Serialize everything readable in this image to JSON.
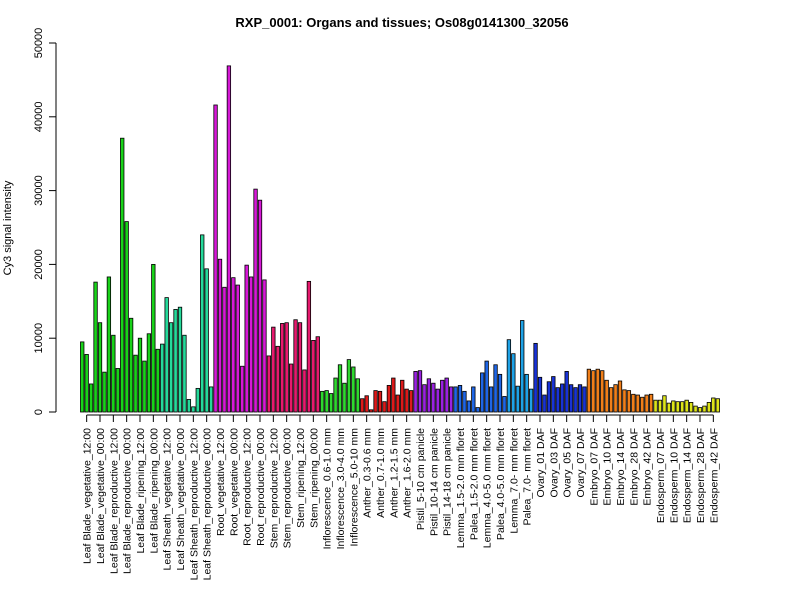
{
  "chart_data": {
    "type": "bar",
    "title": "RXP_0001: Organs and tissues; Os08g0141300_32056",
    "xlabel": "",
    "ylabel": "Cy3 signal intensity",
    "ylim": [
      0,
      50000
    ],
    "yticks": [
      0,
      10000,
      20000,
      30000,
      40000,
      50000
    ],
    "grid": false,
    "legend": "none",
    "groups": [
      {
        "label": "Leaf Blade_vegetative_12:00",
        "color": "#19d219",
        "values": [
          9500,
          7800,
          3800
        ]
      },
      {
        "label": "Leaf Blade_vegetative_00:00",
        "color": "#19d219",
        "values": [
          17600,
          12100,
          5400
        ]
      },
      {
        "label": "Leaf Blade_reproductive_12:00",
        "color": "#19d219",
        "values": [
          18300,
          10400,
          5900
        ]
      },
      {
        "label": "Leaf Blade_reproductive_00:00",
        "color": "#19d219",
        "values": [
          37100,
          25800,
          12700
        ]
      },
      {
        "label": "Leaf Blade_ripening_12:00",
        "color": "#19d219",
        "values": [
          7700,
          10000,
          6900
        ]
      },
      {
        "label": "Leaf Blade_ripening_00:00",
        "color": "#19d219",
        "values": [
          10600,
          20000,
          8500
        ]
      },
      {
        "label": "Leaf Sheath_vegetative_12:00",
        "color": "#26d99a",
        "values": [
          9200,
          15500,
          12100
        ]
      },
      {
        "label": "Leaf Sheath_vegetative_00:00",
        "color": "#26d99a",
        "values": [
          13900,
          14200,
          10400
        ]
      },
      {
        "label": "Leaf Sheath_reproductive_12:00",
        "color": "#26d99a",
        "values": [
          1700,
          700,
          3200
        ]
      },
      {
        "label": "Leaf Sheath_reproductive_00:00",
        "color": "#26d99a",
        "values": [
          24000,
          19400,
          3400
        ]
      },
      {
        "label": "Root_vegetative_12:00",
        "color": "#d619d6",
        "values": [
          41600,
          20700,
          16900
        ]
      },
      {
        "label": "Root_vegetative_00:00",
        "color": "#d619d6",
        "values": [
          46900,
          18200,
          17200
        ]
      },
      {
        "label": "Root_reproductive_12:00",
        "color": "#d619d6",
        "values": [
          6200,
          19900,
          18300
        ]
      },
      {
        "label": "Root_reproductive_00:00",
        "color": "#d619d6",
        "values": [
          30200,
          28700,
          17900
        ]
      },
      {
        "label": "Stem_reproductive_12:00",
        "color": "#e61a6e",
        "values": [
          7600,
          11500,
          8900
        ]
      },
      {
        "label": "Stem_reproductive_00:00",
        "color": "#e61a6e",
        "values": [
          12000,
          12100,
          6500
        ]
      },
      {
        "label": "Stem_ripening_12:00",
        "color": "#e61a6e",
        "values": [
          12500,
          12100,
          5700
        ]
      },
      {
        "label": "Stem_ripening_00:00",
        "color": "#e61a6e",
        "values": [
          17700,
          9700,
          10200
        ]
      },
      {
        "label": "Inflorescence_0.6-1.0 mm",
        "color": "#2fd82f",
        "values": [
          2800,
          2900,
          2500
        ]
      },
      {
        "label": "Inflorescence_3.0-4.0 mm",
        "color": "#2fd82f",
        "values": [
          4600,
          6400,
          3900
        ]
      },
      {
        "label": "Inflorescence_5.0-10 mm",
        "color": "#2fd82f",
        "values": [
          7100,
          6100,
          4500
        ]
      },
      {
        "label": "Anther_0.3-0.6 mm",
        "color": "#dd1a1a",
        "values": [
          1800,
          2200,
          300
        ]
      },
      {
        "label": "Anther_0.7-1.0 mm",
        "color": "#dd1a1a",
        "values": [
          2900,
          2800,
          1400
        ]
      },
      {
        "label": "Anther_1.2-1.5 mm",
        "color": "#dd1a1a",
        "values": [
          3600,
          4600,
          2300
        ]
      },
      {
        "label": "Anther_1.6-2.0 mm",
        "color": "#dd1a1a",
        "values": [
          4300,
          3100,
          2900
        ]
      },
      {
        "label": "Pistil_5-10 cm panicle",
        "color": "#9a22e0",
        "values": [
          5500,
          5600,
          3700
        ]
      },
      {
        "label": "Pistil_10-14 cm panicle",
        "color": "#9a22e0",
        "values": [
          4500,
          3900,
          3100
        ]
      },
      {
        "label": "Pistil_14-18 cm panicle",
        "color": "#9a22e0",
        "values": [
          4300,
          4600,
          3400
        ]
      },
      {
        "label": "Lemma_1.5-2.0 mm floret",
        "color": "#1f66e6",
        "values": [
          3400,
          3600,
          2800
        ]
      },
      {
        "label": "Palea_1.5-2.0 mm floret",
        "color": "#1f66e6",
        "values": [
          1500,
          3400,
          600
        ]
      },
      {
        "label": "Lemma_4.0-5.0 mm floret",
        "color": "#1f66e6",
        "values": [
          5300,
          6900,
          3400
        ]
      },
      {
        "label": "Palea_4.0-5.0 mm floret",
        "color": "#1f66e6",
        "values": [
          6400,
          5100,
          2100
        ]
      },
      {
        "label": "Lemma_7.0- mm floret",
        "color": "#1fa2e6",
        "values": [
          9800,
          7900,
          3500
        ]
      },
      {
        "label": "Palea_7.0- mm floret",
        "color": "#1fa2e6",
        "values": [
          12400,
          5100,
          3100
        ]
      },
      {
        "label": "Ovary_01 DAF",
        "color": "#1933d6",
        "values": [
          9300,
          4700,
          2300
        ]
      },
      {
        "label": "Ovary_03 DAF",
        "color": "#1933d6",
        "values": [
          4100,
          4800,
          3300
        ]
      },
      {
        "label": "Ovary_05 DAF",
        "color": "#1933d6",
        "values": [
          3800,
          5500,
          3700
        ]
      },
      {
        "label": "Ovary_07 DAF",
        "color": "#1933d6",
        "values": [
          3300,
          3700,
          3400
        ]
      },
      {
        "label": "Embryo_07 DAF",
        "color": "#f07f1a",
        "values": [
          5800,
          5600,
          5800
        ]
      },
      {
        "label": "Embryo_10 DAF",
        "color": "#f07f1a",
        "values": [
          5600,
          4300,
          3300
        ]
      },
      {
        "label": "Embryo_14 DAF",
        "color": "#f07f1a",
        "values": [
          3700,
          4200,
          3000
        ]
      },
      {
        "label": "Embryo_28 DAF",
        "color": "#f07f1a",
        "values": [
          2900,
          2400,
          2300
        ]
      },
      {
        "label": "Embryo_42 DAF",
        "color": "#f07f1a",
        "values": [
          2000,
          2300,
          2400
        ]
      },
      {
        "label": "Endosperm_07 DAF",
        "color": "#dde41a",
        "values": [
          1600,
          1600,
          2200
        ]
      },
      {
        "label": "Endosperm_10 DAF",
        "color": "#dde41a",
        "values": [
          1200,
          1500,
          1400
        ]
      },
      {
        "label": "Endosperm_14 DAF",
        "color": "#dde41a",
        "values": [
          1400,
          1600,
          1300
        ]
      },
      {
        "label": "Endosperm_28 DAF",
        "color": "#dde41a",
        "values": [
          800,
          600,
          800
        ]
      },
      {
        "label": "Endosperm_42 DAF",
        "color": "#dde41a",
        "values": [
          1300,
          1900,
          1800
        ]
      }
    ]
  }
}
